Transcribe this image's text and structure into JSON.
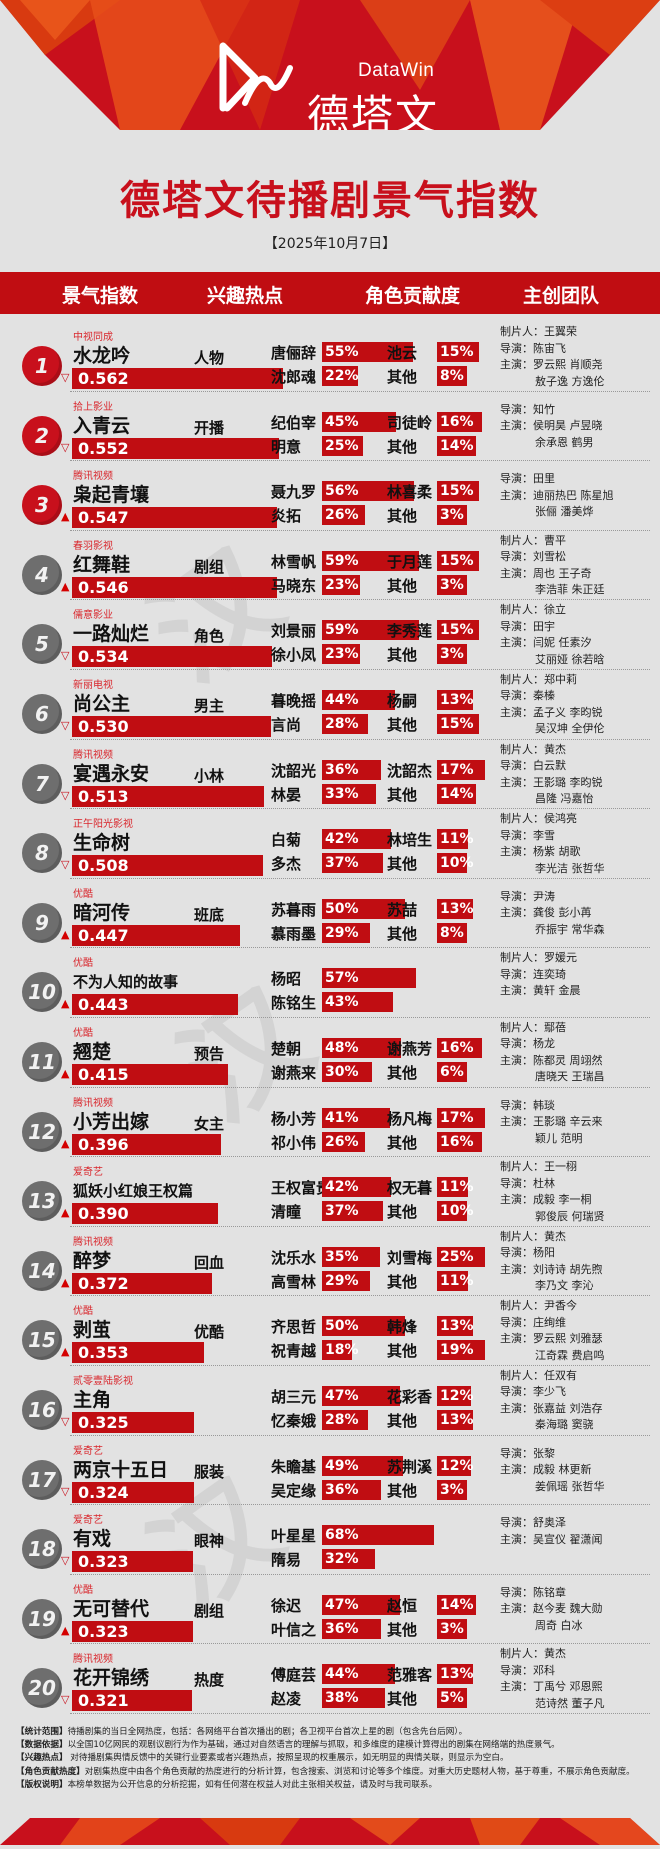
{
  "brand": {
    "name_en": "DataWin",
    "name_cn": "德塔文",
    "accent": "#c00d12",
    "title_color": "#c8101c"
  },
  "page": {
    "title": "德塔文待播剧景气指数",
    "date": "【2025年10月7日】"
  },
  "columns": [
    "景气指数",
    "兴趣热点",
    "角色贡献度",
    "主创团队"
  ],
  "labels": {
    "producer": "制片人：",
    "director": "导演：",
    "cast": "主演："
  },
  "rows": [
    {
      "rank": "1",
      "platform": "中视同成",
      "name": "水龙吟",
      "score": "0.562",
      "trend": "down",
      "hot": "人物",
      "roles": [
        {
          "name": "唐俪辞",
          "pct": "55%"
        },
        {
          "name": "沈郎魂",
          "pct": "22%"
        },
        {
          "name": "池云",
          "pct": "15%"
        },
        {
          "name": "其他",
          "pct": "8%"
        }
      ],
      "producer": "王翼荣",
      "director": "陈宙飞",
      "cast1": "罗云熙  肖顺尧",
      "cast2": "敖子逸  方逸伦"
    },
    {
      "rank": "2",
      "platform": "拾上影业",
      "name": "入青云",
      "score": "0.552",
      "trend": "down",
      "hot": "开播",
      "roles": [
        {
          "name": "纪伯宰",
          "pct": "45%"
        },
        {
          "name": "明意",
          "pct": "25%"
        },
        {
          "name": "司徒岭",
          "pct": "16%"
        },
        {
          "name": "其他",
          "pct": "14%"
        }
      ],
      "producer": "",
      "director": "知竹",
      "cast1": "侯明昊  卢昱晓",
      "cast2": "余承恩  鹤男"
    },
    {
      "rank": "3",
      "platform": "腾讯视频",
      "name": "枭起青壤",
      "score": "0.547",
      "trend": "up",
      "hot": "",
      "roles": [
        {
          "name": "聂九罗",
          "pct": "56%"
        },
        {
          "name": "炎拓",
          "pct": "26%"
        },
        {
          "name": "林喜柔",
          "pct": "15%"
        },
        {
          "name": "其他",
          "pct": "3%"
        }
      ],
      "producer": "",
      "director": "田里",
      "cast1": "迪丽热巴  陈星旭",
      "cast2": "张俪  潘美烨"
    },
    {
      "rank": "4",
      "platform": "春羽影视",
      "name": "红舞鞋",
      "score": "0.546",
      "trend": "up",
      "hot": "剧组",
      "roles": [
        {
          "name": "林雪帆",
          "pct": "59%"
        },
        {
          "name": "马晓东",
          "pct": "23%"
        },
        {
          "name": "于月莲",
          "pct": "15%"
        },
        {
          "name": "其他",
          "pct": "3%"
        }
      ],
      "producer": "曹平",
      "director": "刘雪松",
      "cast1": "周也  王子奇",
      "cast2": "李浩菲  朱正廷"
    },
    {
      "rank": "5",
      "platform": "儒意影业",
      "name": "一路灿烂",
      "score": "0.534",
      "trend": "down",
      "hot": "角色",
      "roles": [
        {
          "name": "刘景丽",
          "pct": "59%"
        },
        {
          "name": "徐小凤",
          "pct": "23%"
        },
        {
          "name": "李秀莲",
          "pct": "15%"
        },
        {
          "name": "其他",
          "pct": "3%"
        }
      ],
      "producer": "徐立",
      "director": "田宇",
      "cast1": "闫妮  任素汐",
      "cast2": "艾丽娅  徐若晗"
    },
    {
      "rank": "6",
      "platform": "新丽电视",
      "name": "尚公主",
      "score": "0.530",
      "trend": "down",
      "hot": "男主",
      "roles": [
        {
          "name": "暮晚摇",
          "pct": "44%"
        },
        {
          "name": "言尚",
          "pct": "28%"
        },
        {
          "name": "杨嗣",
          "pct": "13%"
        },
        {
          "name": "其他",
          "pct": "15%"
        }
      ],
      "producer": "郑中莉",
      "director": "秦榛",
      "cast1": "孟子义  李昀锐",
      "cast2": "吴汉坤  全伊伦"
    },
    {
      "rank": "7",
      "platform": "腾讯视频",
      "name": "宴遇永安",
      "score": "0.513",
      "trend": "down",
      "hot": "小林",
      "roles": [
        {
          "name": "沈韶光",
          "pct": "36%"
        },
        {
          "name": "林晏",
          "pct": "33%"
        },
        {
          "name": "沈韶杰",
          "pct": "17%"
        },
        {
          "name": "其他",
          "pct": "14%"
        }
      ],
      "producer": "黄杰",
      "director": "白云默",
      "cast1": "王影璐  李昀锐",
      "cast2": "昌隆  冯嘉怡"
    },
    {
      "rank": "8",
      "platform": "正午阳光影视",
      "name": "生命树",
      "score": "0.508",
      "trend": "down",
      "hot": "",
      "roles": [
        {
          "name": "白菊",
          "pct": "42%"
        },
        {
          "name": "多杰",
          "pct": "37%"
        },
        {
          "name": "林培生",
          "pct": "11%"
        },
        {
          "name": "其他",
          "pct": "10%"
        }
      ],
      "producer": "侯鸿亮",
      "director": "李雪",
      "cast1": "杨紫  胡歌",
      "cast2": "李光洁  张哲华"
    },
    {
      "rank": "9",
      "platform": "优酷",
      "name": "暗河传",
      "score": "0.447",
      "trend": "up",
      "hot": "班底",
      "roles": [
        {
          "name": "苏暮雨",
          "pct": "50%"
        },
        {
          "name": "慕雨墨",
          "pct": "29%"
        },
        {
          "name": "苏喆",
          "pct": "13%"
        },
        {
          "name": "其他",
          "pct": "8%"
        }
      ],
      "producer": "",
      "director": "尹涛",
      "cast1": "龚俊  彭小苒",
      "cast2": "乔振宇  常华森"
    },
    {
      "rank": "10",
      "platform": "优酷",
      "name": "不为人知的故事",
      "score": "0.443",
      "trend": "up",
      "hot": "",
      "roles": [
        {
          "name": "杨昭",
          "pct": "57%"
        },
        {
          "name": "陈铭生",
          "pct": "43%"
        }
      ],
      "producer": "罗媛元",
      "director": "连奕琦",
      "cast1": "黄轩  金晨",
      "cast2": ""
    },
    {
      "rank": "11",
      "platform": "优酷",
      "name": "翘楚",
      "score": "0.415",
      "trend": "up",
      "hot": "预告",
      "roles": [
        {
          "name": "楚朝",
          "pct": "48%"
        },
        {
          "name": "谢燕来",
          "pct": "30%"
        },
        {
          "name": "谢燕芳",
          "pct": "16%"
        },
        {
          "name": "其他",
          "pct": "6%"
        }
      ],
      "producer": "鄢蓓",
      "director": "杨龙",
      "cast1": "陈都灵  周翊然",
      "cast2": "唐晓天  王瑞昌"
    },
    {
      "rank": "12",
      "platform": "腾讯视频",
      "name": "小芳出嫁",
      "score": "0.396",
      "trend": "up",
      "hot": "女主",
      "roles": [
        {
          "name": "杨小芳",
          "pct": "41%"
        },
        {
          "name": "祁小伟",
          "pct": "26%"
        },
        {
          "name": "杨凡梅",
          "pct": "17%"
        },
        {
          "name": "其他",
          "pct": "16%"
        }
      ],
      "producer": "",
      "director": "韩琰",
      "cast1": "王影璐  辛云来",
      "cast2": "颖儿  范明"
    },
    {
      "rank": "13",
      "platform": "爱奇艺",
      "name": "狐妖小红娘王权篇",
      "score": "0.390",
      "trend": "up",
      "hot": "",
      "roles": [
        {
          "name": "王权富贵",
          "pct": "42%"
        },
        {
          "name": "清瞳",
          "pct": "37%"
        },
        {
          "name": "权无暮",
          "pct": "11%"
        },
        {
          "name": "其他",
          "pct": "10%"
        }
      ],
      "producer": "王一栩",
      "director": "杜林",
      "cast1": "成毅  李一桐",
      "cast2": "郭俊辰  何瑞贤"
    },
    {
      "rank": "14",
      "platform": "腾讯视频",
      "name": "醉梦",
      "score": "0.372",
      "trend": "up",
      "hot": "回血",
      "roles": [
        {
          "name": "沈乐水",
          "pct": "35%"
        },
        {
          "name": "高雪林",
          "pct": "29%"
        },
        {
          "name": "刘雪梅",
          "pct": "25%"
        },
        {
          "name": "其他",
          "pct": "11%"
        }
      ],
      "producer": "黄杰",
      "director": "杨阳",
      "cast1": "刘诗诗  胡先煦",
      "cast2": "李乃文  李沁"
    },
    {
      "rank": "15",
      "platform": "优酷",
      "name": "剥茧",
      "score": "0.353",
      "trend": "up",
      "hot": "优酷",
      "roles": [
        {
          "name": "齐思哲",
          "pct": "50%"
        },
        {
          "name": "祝青越",
          "pct": "18%"
        },
        {
          "name": "韩烽",
          "pct": "13%"
        },
        {
          "name": "其他",
          "pct": "19%"
        }
      ],
      "producer": "尹香今",
      "director": "庄绚维",
      "cast1": "罗云熙  刘雅瑟",
      "cast2": "江奇霖  费启鸣"
    },
    {
      "rank": "16",
      "platform": "贰零壹陆影视",
      "name": "主角",
      "score": "0.325",
      "trend": "down",
      "hot": "",
      "roles": [
        {
          "name": "胡三元",
          "pct": "47%"
        },
        {
          "name": "忆秦娥",
          "pct": "28%"
        },
        {
          "name": "花彩香",
          "pct": "12%"
        },
        {
          "name": "其他",
          "pct": "13%"
        }
      ],
      "producer": "任双有",
      "director": "李少飞",
      "cast1": "张嘉益  刘浩存",
      "cast2": "秦海璐  窦骁"
    },
    {
      "rank": "17",
      "platform": "爱奇艺",
      "name": "两京十五日",
      "score": "0.324",
      "trend": "down",
      "hot": "服装",
      "roles": [
        {
          "name": "朱瞻基",
          "pct": "49%"
        },
        {
          "name": "吴定缘",
          "pct": "36%"
        },
        {
          "name": "苏荆溪",
          "pct": "12%"
        },
        {
          "name": "其他",
          "pct": "3%"
        }
      ],
      "producer": "",
      "director": "张黎",
      "cast1": "成毅  林更新",
      "cast2": "姜佩瑶  张哲华"
    },
    {
      "rank": "18",
      "platform": "爱奇艺",
      "name": "有戏",
      "score": "0.323",
      "trend": "down",
      "hot": "眼神",
      "roles": [
        {
          "name": "叶星星",
          "pct": "68%"
        },
        {
          "name": "隋易",
          "pct": "32%"
        }
      ],
      "producer": "",
      "director": "舒奥泽",
      "cast1": "吴宣仪  翟潇闻",
      "cast2": ""
    },
    {
      "rank": "19",
      "platform": "优酷",
      "name": "无可替代",
      "score": "0.323",
      "trend": "up",
      "hot": "剧组",
      "roles": [
        {
          "name": "徐迟",
          "pct": "47%"
        },
        {
          "name": "叶信之",
          "pct": "36%"
        },
        {
          "name": "赵恒",
          "pct": "14%"
        },
        {
          "name": "其他",
          "pct": "3%"
        }
      ],
      "producer": "",
      "director": "陈铭章",
      "cast1": "赵今麦  魏大勋",
      "cast2": "周奇  白冰"
    },
    {
      "rank": "20",
      "platform": "腾讯视频",
      "name": "花开锦绣",
      "score": "0.321",
      "trend": "down",
      "hot": "热度",
      "roles": [
        {
          "name": "傅庭芸",
          "pct": "44%"
        },
        {
          "name": "赵凌",
          "pct": "38%"
        },
        {
          "name": "范雅客",
          "pct": "13%"
        },
        {
          "name": "其他",
          "pct": "5%"
        }
      ],
      "producer": "黄杰",
      "director": "邓科",
      "cast1": "丁禹兮  邓恩熙",
      "cast2": "范诗然  董子凡"
    }
  ],
  "notes": [
    {
      "tag": "【统计范围】",
      "text": "待播剧集的当日全网热度，包括：各网络平台首次播出的剧；各卫视平台首次上星的剧（包含先台后网）。"
    },
    {
      "tag": "【数据依据】",
      "text": "以全国10亿网民的观剧议剧行为作为基础，通过对自然语言的理解与抓取，和多维度的建模计算得出的剧集在网络端的热度景气。"
    },
    {
      "tag": "【兴趣热点】",
      "text": " 对待播剧集舆情反馈中的关键行业要素或者兴趣热点，按照呈现的权重展示，如无明显的舆情关联，则显示为空白。"
    },
    {
      "tag": "【角色贡献热度】",
      "text": "对剧集热度中由各个角色贡献的热度进行的分析计算，包含搜索、浏览和讨论等多个维度。对重大历史题材人物，基于尊重，不展示角色贡献度。"
    },
    {
      "tag": "【版权说明】",
      "text": "本榜单数据为公开信息的分析挖掘，如有任何潜在权益人对此主张相关权益，请及时与我司联系。"
    }
  ]
}
